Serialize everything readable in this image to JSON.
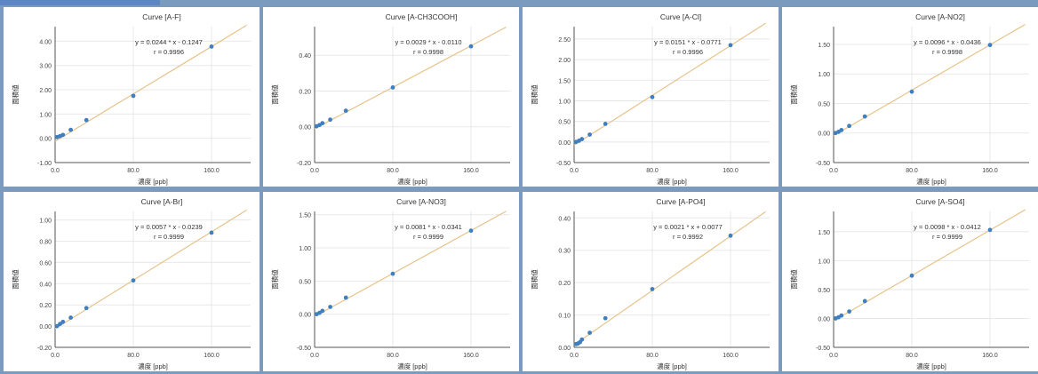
{
  "colors": {
    "fit_line": "#e6c38a",
    "point": "#3f7fbf",
    "grid": "#e8e8e8",
    "axis": "#555555",
    "panel_border": "#7a9bbd"
  },
  "chart_data": [
    {
      "type": "scatter",
      "title": "Curve [A-F]",
      "xlabel": "濃度 [ppb]",
      "ylabel": "面積値",
      "equation": "y = 0.0244 * x - 0.1247",
      "r_text": "r = 0.9996",
      "slope": 0.0244,
      "intercept": -0.1247,
      "xlim": [
        0,
        200
      ],
      "ylim": [
        -1.0,
        4.6
      ],
      "xticks": [
        0,
        80,
        160
      ],
      "xticklabels": [
        "0.0",
        "80.0",
        "160.0"
      ],
      "yticks": [
        -1,
        0,
        1,
        2,
        3,
        4
      ],
      "yticklabels": [
        "-1.00",
        "0.00",
        "1.00",
        "2.00",
        "3.00",
        "4.00"
      ],
      "x": [
        2,
        5,
        8,
        16,
        32,
        80,
        160
      ],
      "y": [
        0.05,
        0.09,
        0.14,
        0.35,
        0.75,
        1.75,
        3.78
      ]
    },
    {
      "type": "scatter",
      "title": "Curve [A-CH3COOH]",
      "xlabel": "濃度 [ppb]",
      "ylabel": "面積値",
      "equation": "y = 0.0029 * x - 0.0110",
      "r_text": "r = 0.9998",
      "slope": 0.0029,
      "intercept": -0.011,
      "xlim": [
        0,
        200
      ],
      "ylim": [
        -0.2,
        0.56
      ],
      "xticks": [
        0,
        80,
        160
      ],
      "xticklabels": [
        "0.0",
        "80.0",
        "160.0"
      ],
      "yticks": [
        -0.2,
        0,
        0.2,
        0.4
      ],
      "yticklabels": [
        "-0.20",
        "0.00",
        "0.20",
        "0.40"
      ],
      "x": [
        2,
        5,
        8,
        16,
        32,
        80,
        160
      ],
      "y": [
        0.003,
        0.01,
        0.02,
        0.04,
        0.09,
        0.22,
        0.45
      ]
    },
    {
      "type": "scatter",
      "title": "Curve [A-Cl]",
      "xlabel": "濃度 [ppb]",
      "ylabel": "面積値",
      "equation": "y = 0.0151 * x - 0.0771",
      "r_text": "r = 0.9996",
      "slope": 0.0151,
      "intercept": -0.0771,
      "xlim": [
        0,
        200
      ],
      "ylim": [
        -0.5,
        2.8
      ],
      "xticks": [
        0,
        80,
        160
      ],
      "xticklabels": [
        "0.0",
        "80.0",
        "160.0"
      ],
      "yticks": [
        -0.5,
        0,
        0.5,
        1.0,
        1.5,
        2.0,
        2.5
      ],
      "yticklabels": [
        "-0.50",
        "0.00",
        "0.50",
        "1.00",
        "1.50",
        "2.00",
        "2.50"
      ],
      "x": [
        2,
        5,
        8,
        16,
        32,
        80,
        160
      ],
      "y": [
        0.0,
        0.03,
        0.07,
        0.18,
        0.44,
        1.09,
        2.35
      ]
    },
    {
      "type": "scatter",
      "title": "Curve [A-NO2]",
      "xlabel": "濃度 [ppb]",
      "ylabel": "面積値",
      "equation": "y = 0.0096 * x - 0.0436",
      "r_text": "r = 0.9998",
      "slope": 0.0096,
      "intercept": -0.0436,
      "xlim": [
        0,
        200
      ],
      "ylim": [
        -0.5,
        1.8
      ],
      "xticks": [
        0,
        80,
        160
      ],
      "xticklabels": [
        "0.0",
        "80.0",
        "160.0"
      ],
      "yticks": [
        -0.5,
        0,
        0.5,
        1.0,
        1.5
      ],
      "yticklabels": [
        "-0.50",
        "0.00",
        "0.50",
        "1.00",
        "1.50"
      ],
      "x": [
        2,
        5,
        8,
        16,
        32,
        80,
        160
      ],
      "y": [
        0.0,
        0.02,
        0.05,
        0.12,
        0.28,
        0.7,
        1.49
      ]
    },
    {
      "type": "scatter",
      "title": "Curve [A-Br]",
      "xlabel": "濃度 [ppb]",
      "ylabel": "面積値",
      "equation": "y = 0.0057 * x - 0.0239",
      "r_text": "r = 0.9999",
      "slope": 0.0057,
      "intercept": -0.0239,
      "xlim": [
        0,
        200
      ],
      "ylim": [
        -0.2,
        1.08
      ],
      "xticks": [
        0,
        80,
        160
      ],
      "xticklabels": [
        "0.0",
        "80.0",
        "160.0"
      ],
      "yticks": [
        -0.2,
        0,
        0.2,
        0.4,
        0.6,
        0.8,
        1.0
      ],
      "yticklabels": [
        "-0.20",
        "0.00",
        "0.20",
        "0.40",
        "0.60",
        "0.80",
        "1.00"
      ],
      "x": [
        2,
        5,
        8,
        16,
        32,
        80,
        160
      ],
      "y": [
        0.0,
        0.02,
        0.04,
        0.08,
        0.17,
        0.43,
        0.88
      ]
    },
    {
      "type": "scatter",
      "title": "Curve [A-NO3]",
      "xlabel": "濃度 [ppb]",
      "ylabel": "面積値",
      "equation": "y = 0.0081 * x - 0.0341",
      "r_text": "r = 0.9999",
      "slope": 0.0081,
      "intercept": -0.0341,
      "xlim": [
        0,
        200
      ],
      "ylim": [
        -0.5,
        1.55
      ],
      "xticks": [
        0,
        80,
        160
      ],
      "xticklabels": [
        "0.0",
        "80.0",
        "160.0"
      ],
      "yticks": [
        -0.5,
        0,
        0.5,
        1.0,
        1.5
      ],
      "yticklabels": [
        "-0.50",
        "0.00",
        "0.50",
        "1.00",
        "1.50"
      ],
      "x": [
        2,
        5,
        8,
        16,
        32,
        80,
        160
      ],
      "y": [
        0.0,
        0.02,
        0.05,
        0.11,
        0.25,
        0.61,
        1.26
      ]
    },
    {
      "type": "scatter",
      "title": "Curve [A-PO4]",
      "xlabel": "濃度 [ppb]",
      "ylabel": "面積値",
      "equation": "y = 0.0021 * x + 0.0077",
      "r_text": "r = 0.9992",
      "slope": 0.0021,
      "intercept": 0.0077,
      "xlim": [
        0,
        200
      ],
      "ylim": [
        0.0,
        0.42
      ],
      "xticks": [
        0,
        80,
        160
      ],
      "xticklabels": [
        "0.0",
        "80.0",
        "160.0"
      ],
      "yticks": [
        0,
        0.1,
        0.2,
        0.3,
        0.4
      ],
      "yticklabels": [
        "0.00",
        "0.10",
        "0.20",
        "0.30",
        "0.40"
      ],
      "x": [
        2,
        4,
        6,
        8,
        16,
        32,
        80,
        160
      ],
      "y": [
        0.01,
        0.012,
        0.016,
        0.024,
        0.045,
        0.09,
        0.18,
        0.345
      ]
    },
    {
      "type": "scatter",
      "title": "Curve [A-SO4]",
      "xlabel": "濃度 [ppb]",
      "ylabel": "面積値",
      "equation": "y = 0.0098 * x - 0.0412",
      "r_text": "r = 0.9999",
      "slope": 0.0098,
      "intercept": -0.0412,
      "xlim": [
        0,
        200
      ],
      "ylim": [
        -0.5,
        1.85
      ],
      "xticks": [
        0,
        80,
        160
      ],
      "xticklabels": [
        "0.0",
        "80.0",
        "160.0"
      ],
      "yticks": [
        -0.5,
        0,
        0.5,
        1.0,
        1.5
      ],
      "yticklabels": [
        "-0.50",
        "0.00",
        "0.50",
        "1.00",
        "1.50"
      ],
      "x": [
        2,
        5,
        8,
        16,
        32,
        80,
        160
      ],
      "y": [
        0.0,
        0.02,
        0.05,
        0.12,
        0.3,
        0.74,
        1.53
      ]
    }
  ]
}
